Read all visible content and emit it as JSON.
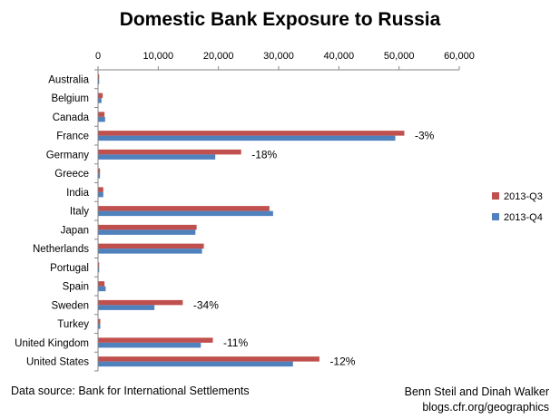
{
  "chart_data": {
    "type": "bar",
    "orientation": "horizontal",
    "title": "Domestic Bank Exposure to Russia",
    "xlim": [
      0,
      60000
    ],
    "xticks": [
      "0",
      "10,000",
      "20,000",
      "30,000",
      "40,000",
      "50,000",
      "60,000"
    ],
    "categories": [
      "Australia",
      "Belgium",
      "Canada",
      "France",
      "Germany",
      "Greece",
      "India",
      "Italy",
      "Japan",
      "Netherlands",
      "Portugal",
      "Spain",
      "Sweden",
      "Turkey",
      "United Kingdom",
      "United States"
    ],
    "series": [
      {
        "name": "2013-Q3",
        "color": "#c0504d",
        "values": [
          100,
          700,
          1000,
          50800,
          23700,
          250,
          800,
          28400,
          16300,
          17500,
          50,
          1000,
          14000,
          300,
          19000,
          36700
        ]
      },
      {
        "name": "2013-Q4",
        "color": "#4f81bd",
        "values": [
          100,
          500,
          1100,
          49300,
          19400,
          250,
          800,
          29000,
          16100,
          17200,
          50,
          1200,
          9300,
          300,
          17000,
          32300
        ]
      }
    ],
    "annotations": [
      {
        "category": "France",
        "text": "-3%"
      },
      {
        "category": "Germany",
        "text": "-18%"
      },
      {
        "category": "Sweden",
        "text": "-34%"
      },
      {
        "category": "United Kingdom",
        "text": "-11%"
      },
      {
        "category": "United States",
        "text": "-12%"
      }
    ],
    "legend_position": "right",
    "grid": false
  },
  "footer": {
    "source": "Data source: Bank for International Settlements",
    "credit_line1": "Benn Steil and Dinah Walker",
    "credit_line2": "blogs.cfr.org/geographics"
  }
}
